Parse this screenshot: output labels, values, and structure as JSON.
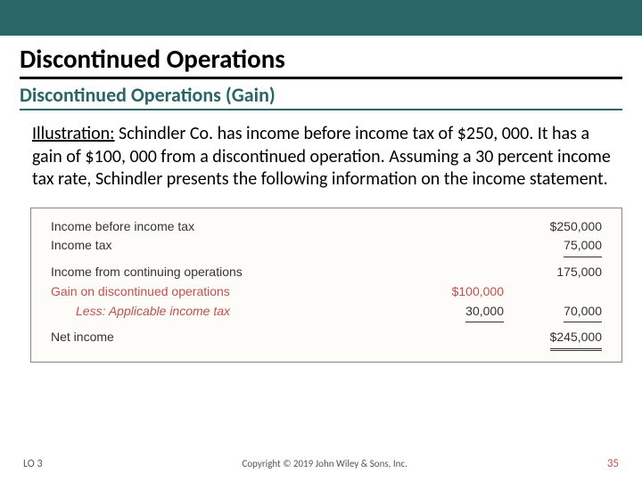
{
  "header": {
    "title": "Discontinued Operations",
    "subtitle": "Discontinued Operations (Gain)"
  },
  "body": {
    "illustration_label": "Illustration:",
    "illustration_text": " Schindler Co. has income before income tax of $250, 000. It has a gain of $100, 000 from a discontinued operation. Assuming a 30 percent income tax rate, Schindler presents the following information on the income statement."
  },
  "stmt": {
    "rows": {
      "r1": {
        "label": "Income before income tax",
        "b": "$250,000"
      },
      "r2": {
        "label": "Income tax",
        "b": "75,000"
      },
      "r3": {
        "label": "Income from continuing operations",
        "b": "175,000"
      },
      "r4": {
        "label": "Gain on discontinued operations",
        "a": "$100,000"
      },
      "r5": {
        "label": "Less: Applicable income tax",
        "a": "30,000",
        "b": "70,000"
      },
      "r6": {
        "label": "Net income",
        "b": "$245,000"
      }
    }
  },
  "footer": {
    "lo": "LO 3",
    "copyright": "Copyright © 2019 John Wiley & Sons, Inc.",
    "page": "35"
  },
  "colors": {
    "header_bar": "#2a6666",
    "gain_text": "#c0504d",
    "table_bg": "#fdfcf9"
  }
}
